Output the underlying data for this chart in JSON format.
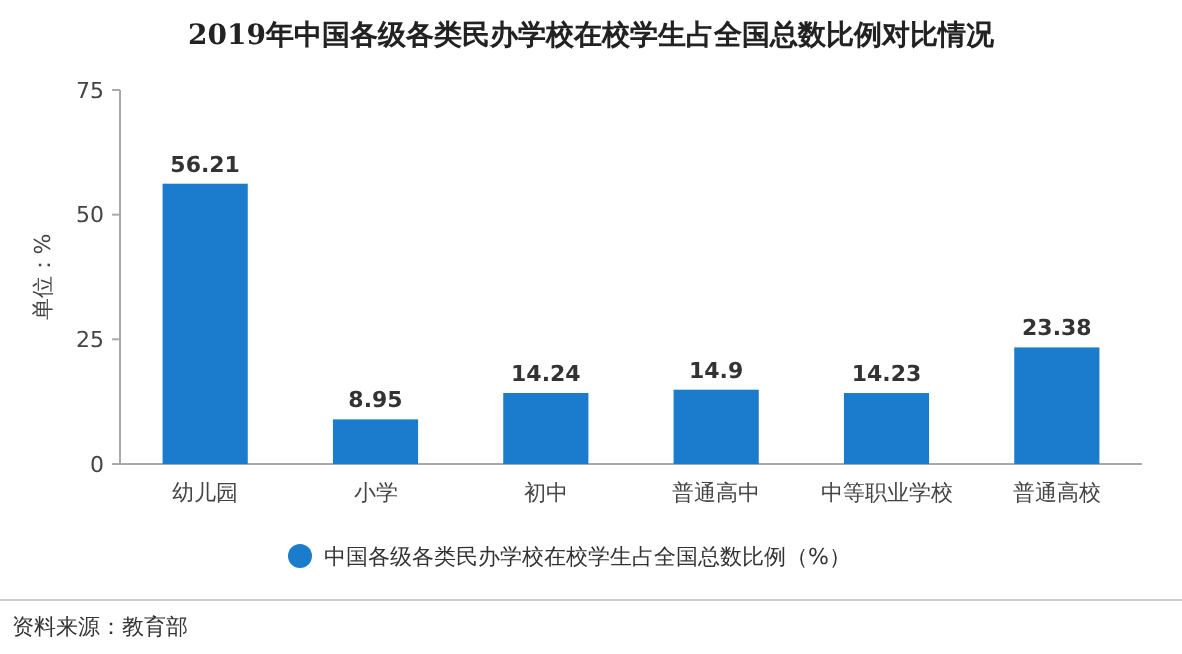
{
  "chart_data": {
    "type": "bar",
    "title": "2019年中国各级各类民办学校在校学生占全国总数比例对比情况",
    "ylabel": "单位：%",
    "categories": [
      "幼儿园",
      "小学",
      "初中",
      "普通高中",
      "中等职业学校",
      "普通高校"
    ],
    "series": [
      {
        "name": "中国各级各类民办学校在校学生占全国总数比例（%）",
        "color": "#1b7bcc",
        "values": [
          56.21,
          8.95,
          14.24,
          14.9,
          14.23,
          23.38
        ]
      }
    ],
    "ylim": [
      0,
      75
    ],
    "yticks": [
      0,
      25,
      50,
      75
    ],
    "data_labels": true,
    "legend": "bottom",
    "grid": false,
    "annotations": [
      "资料来源：教育部"
    ]
  }
}
